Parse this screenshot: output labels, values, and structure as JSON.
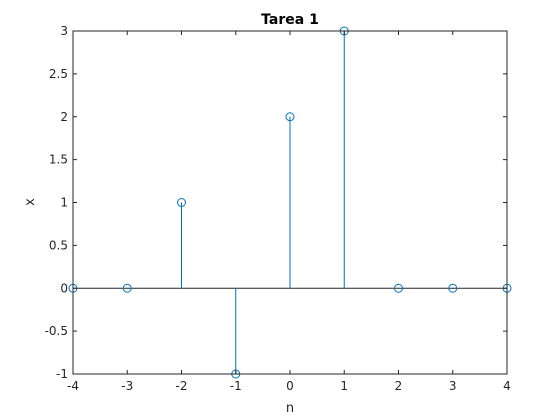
{
  "chart_data": {
    "type": "stem",
    "title": "Tarea 1",
    "xlabel": "n",
    "ylabel": "x",
    "xlim": [
      -4,
      4
    ],
    "ylim": [
      -1,
      3
    ],
    "xticks": [
      "-4",
      "-3",
      "-2",
      "-1",
      "0",
      "1",
      "2",
      "3",
      "4"
    ],
    "yticks": [
      "-1",
      "-0.5",
      "0",
      "0.5",
      "1",
      "1.5",
      "2",
      "2.5",
      "3"
    ],
    "grid": false,
    "series": [
      {
        "x": [
          -4,
          -3,
          -2,
          -1,
          0,
          1,
          2,
          3,
          4
        ],
        "y": [
          0,
          0,
          1,
          -1,
          2,
          3,
          0,
          0,
          0
        ],
        "color": "#0072BD",
        "marker": "circle"
      }
    ]
  }
}
